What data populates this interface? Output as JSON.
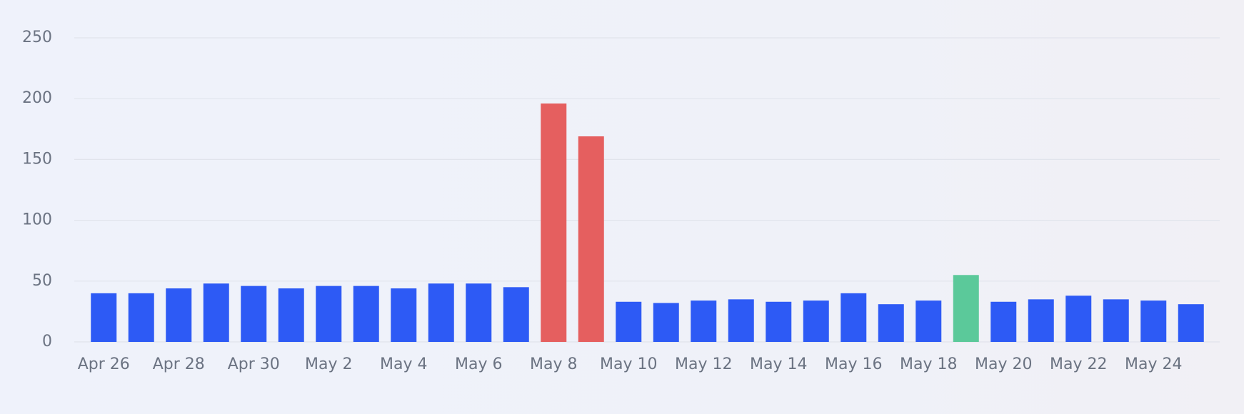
{
  "chart_data": {
    "type": "bar",
    "categories": [
      "Apr 26",
      null,
      "Apr 28",
      null,
      "Apr 30",
      null,
      "May 2",
      null,
      "May 4",
      null,
      "May 6",
      null,
      "May 8",
      null,
      "May 10",
      null,
      "May 12",
      null,
      "May 14",
      null,
      "May 16",
      null,
      "May 18",
      null,
      "May 20",
      null,
      "May 22",
      null,
      "May 24",
      null
    ],
    "values": [
      40,
      40,
      44,
      48,
      46,
      44,
      46,
      46,
      44,
      48,
      48,
      45,
      196,
      169,
      33,
      32,
      34,
      35,
      33,
      34,
      40,
      31,
      34,
      55,
      33,
      35,
      38,
      35,
      34,
      31
    ],
    "colors": [
      "#2d5af5",
      "#2d5af5",
      "#2d5af5",
      "#2d5af5",
      "#2d5af5",
      "#2d5af5",
      "#2d5af5",
      "#2d5af5",
      "#2d5af5",
      "#2d5af5",
      "#2d5af5",
      "#2d5af5",
      "#e55f5f",
      "#e55f5f",
      "#2d5af5",
      "#2d5af5",
      "#2d5af5",
      "#2d5af5",
      "#2d5af5",
      "#2d5af5",
      "#2d5af5",
      "#2d5af5",
      "#2d5af5",
      "#5bc99a",
      "#2d5af5",
      "#2d5af5",
      "#2d5af5",
      "#2d5af5",
      "#2d5af5",
      "#2d5af5"
    ],
    "ylim": [
      0,
      250
    ],
    "yticks": [
      0,
      50,
      100,
      150,
      200,
      250
    ],
    "grid": true
  }
}
